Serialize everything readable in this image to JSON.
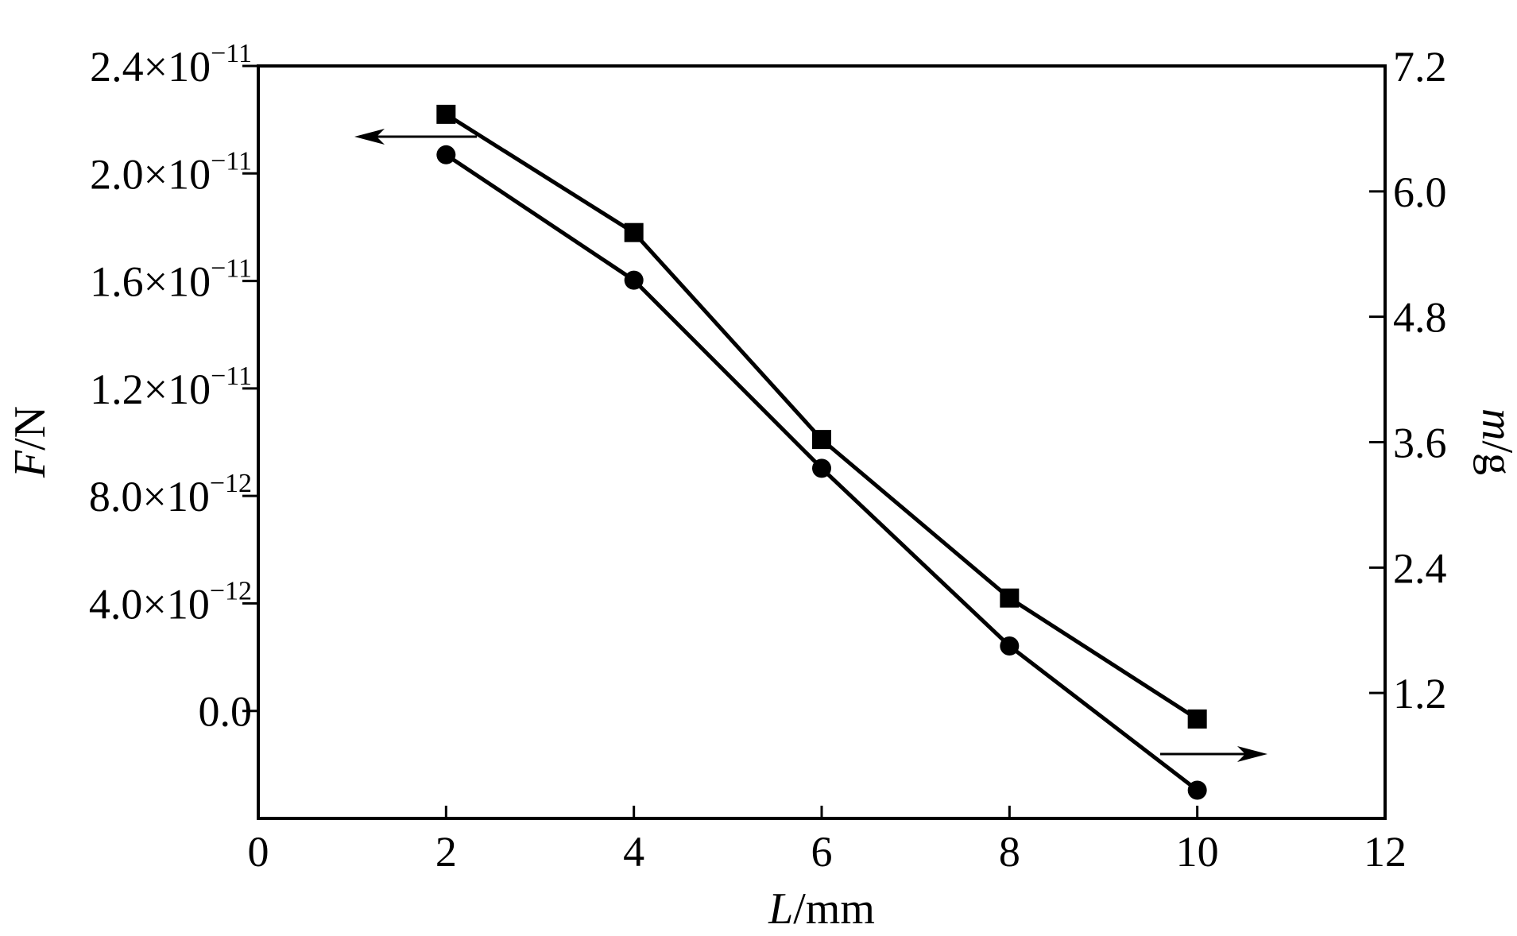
{
  "chart_data": {
    "type": "line",
    "x": {
      "label_italic": "L",
      "label_unit": "/mm",
      "range": [
        0,
        12
      ],
      "ticks": [
        0,
        2,
        4,
        6,
        8,
        10,
        12
      ],
      "tick_labels": [
        "0",
        "2",
        "4",
        "6",
        "8",
        "10",
        "12"
      ]
    },
    "y_left": {
      "label_italic": "F",
      "label_unit": "/N",
      "range": [
        -4e-12,
        2.4e-11
      ],
      "ticks": [
        0,
        4e-12,
        8e-12,
        1.2e-11,
        1.6e-11,
        2e-11,
        2.4e-11
      ],
      "tick_labels": [
        {
          "mantissa": "0.0",
          "times": "",
          "base": "",
          "exponent": ""
        },
        {
          "mantissa": "4.0",
          "times": "×",
          "base": "10",
          "exponent": "−12"
        },
        {
          "mantissa": "8.0",
          "times": "×",
          "base": "10",
          "exponent": "−12"
        },
        {
          "mantissa": "1.2",
          "times": "×",
          "base": "10",
          "exponent": "−11"
        },
        {
          "mantissa": "1.6",
          "times": "×",
          "base": "10",
          "exponent": "−11"
        },
        {
          "mantissa": "2.0",
          "times": "×",
          "base": "10",
          "exponent": "−11"
        },
        {
          "mantissa": "2.4",
          "times": "×",
          "base": "10",
          "exponent": "−11"
        }
      ]
    },
    "y_right": {
      "label_italic": "m",
      "label_unit": "/g",
      "range": [
        0.0,
        7.2
      ],
      "ticks": [
        1.2,
        2.4,
        3.6,
        4.8,
        6.0,
        7.2
      ],
      "tick_labels": [
        "1.2",
        "2.4",
        "3.6",
        "4.8",
        "6.0",
        "7.2"
      ]
    },
    "series": [
      {
        "axis": "left",
        "marker": "square",
        "x": [
          2,
          4,
          6,
          8,
          10
        ],
        "y": [
          2.22e-11,
          1.78e-11,
          1.01e-11,
          4.2e-12,
          -3e-13
        ]
      },
      {
        "axis": "right",
        "marker": "circle",
        "x": [
          2,
          4,
          6,
          8,
          10
        ],
        "y": [
          6.35,
          5.15,
          3.35,
          1.65,
          0.27
        ]
      }
    ],
    "annotations": [
      {
        "type": "arrow",
        "direction": "left",
        "points_to": "left axis"
      },
      {
        "type": "arrow",
        "direction": "right",
        "points_to": "right axis"
      }
    ],
    "grid": false,
    "legend": "none"
  }
}
